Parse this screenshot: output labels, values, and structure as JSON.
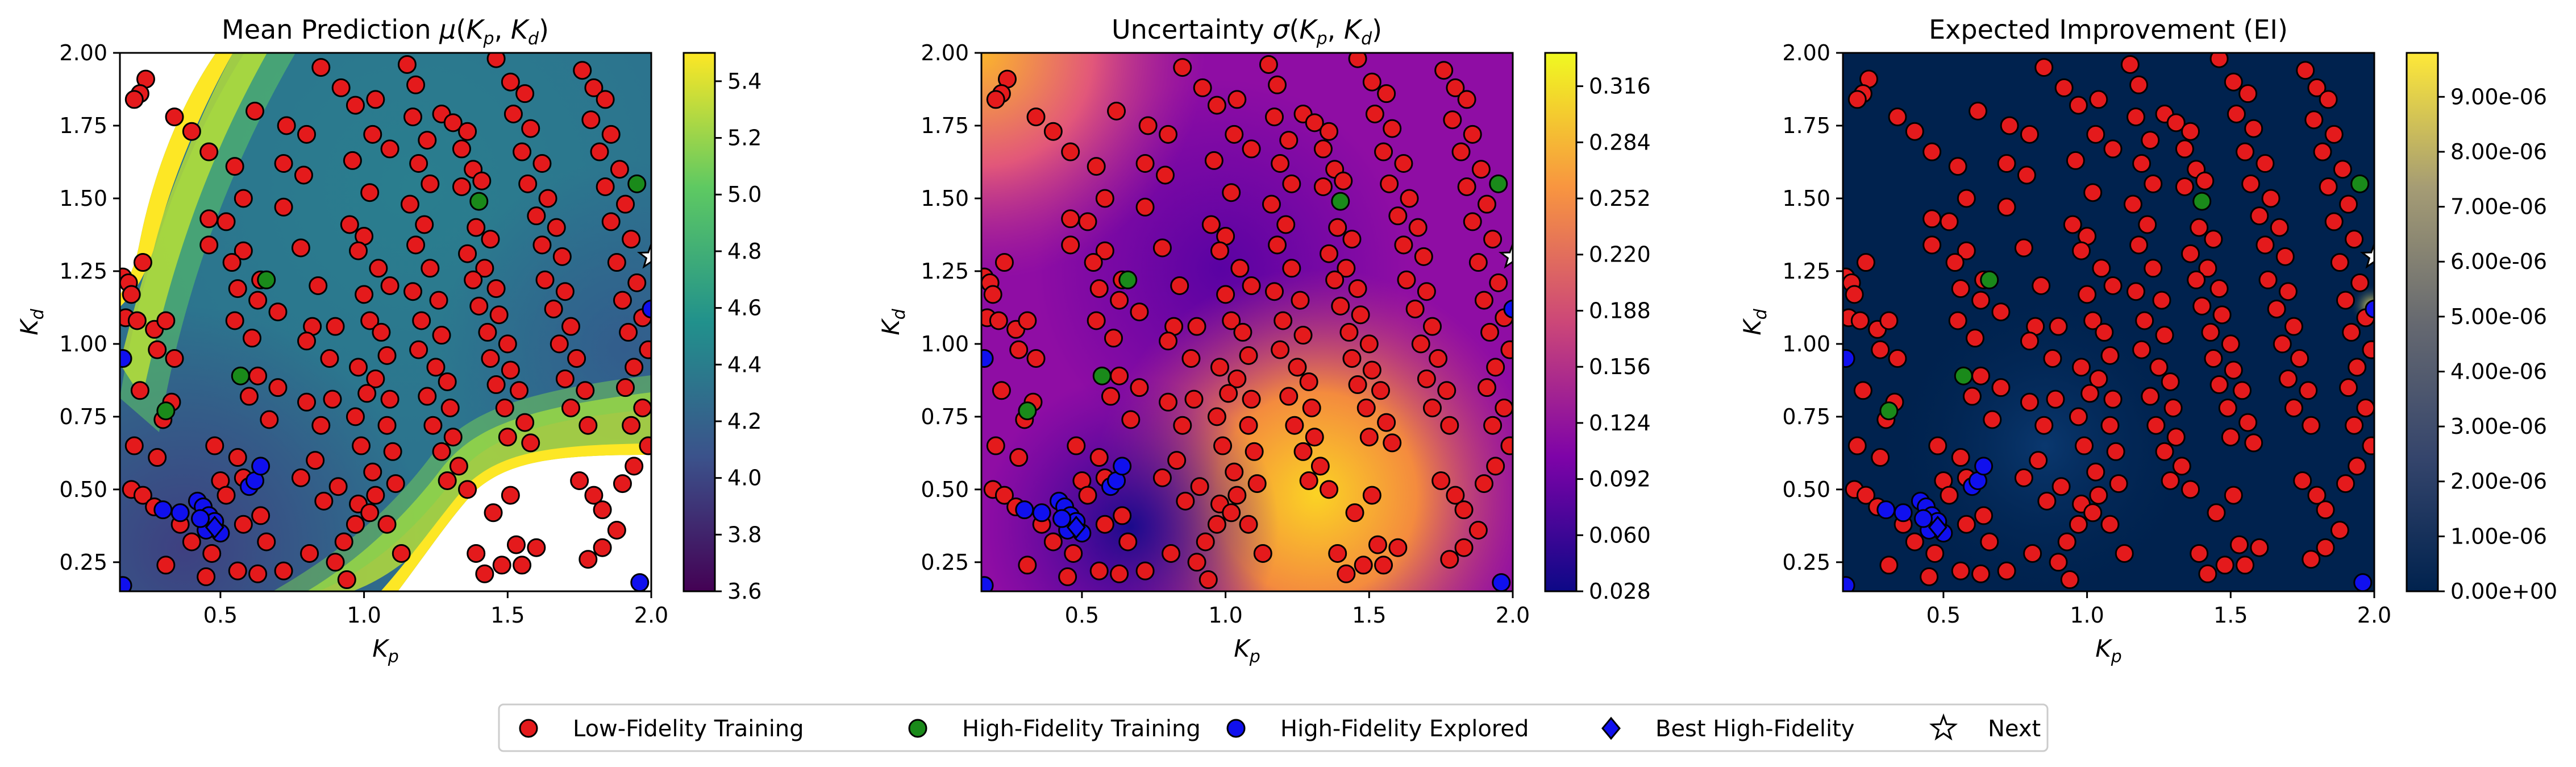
{
  "chart_data": [
    {
      "type": "heatmap",
      "title": "Mean Prediction μ(Kₚ, K_d)",
      "xlabel": "K_p",
      "ylabel": "K_d",
      "xlim": [
        0.15,
        2.0
      ],
      "ylim": [
        0.15,
        2.0
      ],
      "xticks": [
        "0.5",
        "1.0",
        "1.5",
        "2.0"
      ],
      "yticks": [
        "0.25",
        "0.50",
        "0.75",
        "1.00",
        "1.25",
        "1.50",
        "1.75",
        "2.00"
      ],
      "colormap": "viridis",
      "colorbar_range": [
        3.6,
        5.5
      ],
      "colorbar_ticks": [
        "3.6",
        "3.8",
        "4.0",
        "4.2",
        "4.4",
        "4.6",
        "4.8",
        "5.0",
        "5.2",
        "5.4"
      ]
    },
    {
      "type": "heatmap",
      "title": "Uncertainty σ(Kₚ, K_d)",
      "xlabel": "K_p",
      "ylabel": "K_d",
      "xlim": [
        0.15,
        2.0
      ],
      "ylim": [
        0.15,
        2.0
      ],
      "xticks": [
        "0.5",
        "1.0",
        "1.5",
        "2.0"
      ],
      "yticks": [
        "0.25",
        "0.50",
        "0.75",
        "1.00",
        "1.25",
        "1.50",
        "1.75",
        "2.00"
      ],
      "colormap": "plasma",
      "colorbar_range": [
        0.028,
        0.335
      ],
      "colorbar_ticks": [
        "0.028",
        "0.060",
        "0.092",
        "0.124",
        "0.156",
        "0.188",
        "0.220",
        "0.252",
        "0.284",
        "0.316"
      ]
    },
    {
      "type": "heatmap",
      "title": "Expected Improvement (EI)",
      "xlabel": "K_p",
      "ylabel": "K_d",
      "xlim": [
        0.15,
        2.0
      ],
      "ylim": [
        0.15,
        2.0
      ],
      "xticks": [
        "0.5",
        "1.0",
        "1.5",
        "2.0"
      ],
      "yticks": [
        "0.25",
        "0.50",
        "0.75",
        "1.00",
        "1.25",
        "1.50",
        "1.75",
        "2.00"
      ],
      "colormap": "cividis",
      "colorbar_range": [
        0,
        9.8e-06
      ],
      "colorbar_ticks": [
        "0.00e+00",
        "1.00e-06",
        "2.00e-06",
        "3.00e-06",
        "4.00e-06",
        "5.00e-06",
        "6.00e-06",
        "7.00e-06",
        "8.00e-06",
        "9.00e-06"
      ]
    }
  ],
  "legend": {
    "placement": "bottom-center",
    "entries": [
      {
        "label": "Low-Fidelity Training",
        "marker": "circle",
        "color": "#e41a1c"
      },
      {
        "label": "High-Fidelity Training",
        "marker": "circle",
        "color": "#1a8a1a"
      },
      {
        "label": "High-Fidelity Explored",
        "marker": "circle",
        "color": "#1010ee"
      },
      {
        "label": "Best High-Fidelity",
        "marker": "diamond",
        "color": "#1010ee"
      },
      {
        "label": "Next",
        "marker": "star",
        "color": "#ffffff"
      }
    ]
  },
  "points": {
    "low_fidelity": [
      [
        0.24,
        1.91
      ],
      [
        0.22,
        1.86
      ],
      [
        0.2,
        1.84
      ],
      [
        0.34,
        1.78
      ],
      [
        0.4,
        1.73
      ],
      [
        0.23,
        1.28
      ],
      [
        0.16,
        1.23
      ],
      [
        0.18,
        1.21
      ],
      [
        0.19,
        1.17
      ],
      [
        0.17,
        1.09
      ],
      [
        0.21,
        1.08
      ],
      [
        0.27,
        1.05
      ],
      [
        0.31,
        1.08
      ],
      [
        0.28,
        0.98
      ],
      [
        0.34,
        0.95
      ],
      [
        0.22,
        0.84
      ],
      [
        0.33,
        0.8
      ],
      [
        0.3,
        0.74
      ],
      [
        0.2,
        0.65
      ],
      [
        0.28,
        0.61
      ],
      [
        0.19,
        0.5
      ],
      [
        0.23,
        0.48
      ],
      [
        0.27,
        0.44
      ],
      [
        0.36,
        0.38
      ],
      [
        0.4,
        0.32
      ],
      [
        0.47,
        0.28
      ],
      [
        0.31,
        0.24
      ],
      [
        0.45,
        0.2
      ],
      [
        0.46,
        1.66
      ],
      [
        0.55,
        1.61
      ],
      [
        0.58,
        1.5
      ],
      [
        0.46,
        1.43
      ],
      [
        0.52,
        1.42
      ],
      [
        0.58,
        1.32
      ],
      [
        0.46,
        1.34
      ],
      [
        0.54,
        1.28
      ],
      [
        0.64,
        1.22
      ],
      [
        0.56,
        1.19
      ],
      [
        0.63,
        1.15
      ],
      [
        0.55,
        1.08
      ],
      [
        0.7,
        1.11
      ],
      [
        0.61,
        1.02
      ],
      [
        0.63,
        0.89
      ],
      [
        0.6,
        0.82
      ],
      [
        0.7,
        0.85
      ],
      [
        0.67,
        0.74
      ],
      [
        0.48,
        0.65
      ],
      [
        0.56,
        0.61
      ],
      [
        0.58,
        0.54
      ],
      [
        0.5,
        0.53
      ],
      [
        0.52,
        0.48
      ],
      [
        0.64,
        0.41
      ],
      [
        0.58,
        0.38
      ],
      [
        0.66,
        0.32
      ],
      [
        0.56,
        0.22
      ],
      [
        0.63,
        0.21
      ],
      [
        0.72,
        0.22
      ],
      [
        0.62,
        1.8
      ],
      [
        0.73,
        1.75
      ],
      [
        0.8,
        1.72
      ],
      [
        0.72,
        1.62
      ],
      [
        0.79,
        1.58
      ],
      [
        0.72,
        1.47
      ],
      [
        0.78,
        1.33
      ],
      [
        0.84,
        1.2
      ],
      [
        0.82,
        1.06
      ],
      [
        0.8,
        1.01
      ],
      [
        0.9,
        1.06
      ],
      [
        0.88,
        0.95
      ],
      [
        0.8,
        0.8
      ],
      [
        0.89,
        0.81
      ],
      [
        0.85,
        0.72
      ],
      [
        0.83,
        0.6
      ],
      [
        0.78,
        0.54
      ],
      [
        0.91,
        0.51
      ],
      [
        0.86,
        0.46
      ],
      [
        0.98,
        0.45
      ],
      [
        0.97,
        0.38
      ],
      [
        0.93,
        0.32
      ],
      [
        0.81,
        0.28
      ],
      [
        0.9,
        0.25
      ],
      [
        0.94,
        0.19
      ],
      [
        0.85,
        1.95
      ],
      [
        0.92,
        1.88
      ],
      [
        0.97,
        1.82
      ],
      [
        1.04,
        1.84
      ],
      [
        1.03,
        1.72
      ],
      [
        1.09,
        1.67
      ],
      [
        0.96,
        1.63
      ],
      [
        1.02,
        1.52
      ],
      [
        0.95,
        1.41
      ],
      [
        1.0,
        1.37
      ],
      [
        0.98,
        1.32
      ],
      [
        1.05,
        1.26
      ],
      [
        1.0,
        1.17
      ],
      [
        1.09,
        1.2
      ],
      [
        1.02,
        1.08
      ],
      [
        1.06,
        1.04
      ],
      [
        1.08,
        0.96
      ],
      [
        0.98,
        0.92
      ],
      [
        1.04,
        0.88
      ],
      [
        1.01,
        0.83
      ],
      [
        1.09,
        0.81
      ],
      [
        0.97,
        0.75
      ],
      [
        1.08,
        0.72
      ],
      [
        0.99,
        0.65
      ],
      [
        1.1,
        0.63
      ],
      [
        1.03,
        0.56
      ],
      [
        1.11,
        0.52
      ],
      [
        1.04,
        0.48
      ],
      [
        1.02,
        0.42
      ],
      [
        1.08,
        0.38
      ],
      [
        1.13,
        0.28
      ],
      [
        1.15,
        1.96
      ],
      [
        1.18,
        1.89
      ],
      [
        1.17,
        1.78
      ],
      [
        1.22,
        1.7
      ],
      [
        1.19,
        1.62
      ],
      [
        1.23,
        1.55
      ],
      [
        1.16,
        1.48
      ],
      [
        1.21,
        1.41
      ],
      [
        1.18,
        1.34
      ],
      [
        1.23,
        1.26
      ],
      [
        1.17,
        1.18
      ],
      [
        1.26,
        1.15
      ],
      [
        1.2,
        1.08
      ],
      [
        1.27,
        1.03
      ],
      [
        1.19,
        0.98
      ],
      [
        1.25,
        0.92
      ],
      [
        1.29,
        0.87
      ],
      [
        1.22,
        0.82
      ],
      [
        1.3,
        0.78
      ],
      [
        1.24,
        0.72
      ],
      [
        1.31,
        0.68
      ],
      [
        1.27,
        0.63
      ],
      [
        1.33,
        0.58
      ],
      [
        1.29,
        0.53
      ],
      [
        1.36,
        0.5
      ],
      [
        1.27,
        1.79
      ],
      [
        1.31,
        1.76
      ],
      [
        1.36,
        1.73
      ],
      [
        1.34,
        1.67
      ],
      [
        1.38,
        1.6
      ],
      [
        1.34,
        1.54
      ],
      [
        1.41,
        1.56
      ],
      [
        1.39,
        1.4
      ],
      [
        1.44,
        1.36
      ],
      [
        1.36,
        1.31
      ],
      [
        1.42,
        1.26
      ],
      [
        1.38,
        1.22
      ],
      [
        1.46,
        1.19
      ],
      [
        1.4,
        1.13
      ],
      [
        1.47,
        1.1
      ],
      [
        1.43,
        1.04
      ],
      [
        1.5,
        1.0
      ],
      [
        1.44,
        0.95
      ],
      [
        1.51,
        0.91
      ],
      [
        1.46,
        0.86
      ],
      [
        1.54,
        0.84
      ],
      [
        1.49,
        0.78
      ],
      [
        1.56,
        0.73
      ],
      [
        1.5,
        0.68
      ],
      [
        1.58,
        0.66
      ],
      [
        1.51,
        0.48
      ],
      [
        1.45,
        0.42
      ],
      [
        1.53,
        0.31
      ],
      [
        1.48,
        0.24
      ],
      [
        1.39,
        0.28
      ],
      [
        1.42,
        0.21
      ],
      [
        1.55,
        0.24
      ],
      [
        1.6,
        0.3
      ],
      [
        1.46,
        1.98
      ],
      [
        1.51,
        1.9
      ],
      [
        1.56,
        1.86
      ],
      [
        1.52,
        1.79
      ],
      [
        1.58,
        1.74
      ],
      [
        1.55,
        1.66
      ],
      [
        1.62,
        1.62
      ],
      [
        1.57,
        1.55
      ],
      [
        1.64,
        1.5
      ],
      [
        1.6,
        1.44
      ],
      [
        1.67,
        1.4
      ],
      [
        1.62,
        1.34
      ],
      [
        1.69,
        1.3
      ],
      [
        1.63,
        1.22
      ],
      [
        1.7,
        1.18
      ],
      [
        1.66,
        1.12
      ],
      [
        1.72,
        1.06
      ],
      [
        1.68,
        1.0
      ],
      [
        1.74,
        0.95
      ],
      [
        1.7,
        0.88
      ],
      [
        1.77,
        0.84
      ],
      [
        1.72,
        0.78
      ],
      [
        1.78,
        0.72
      ],
      [
        1.75,
        0.53
      ],
      [
        1.8,
        0.48
      ],
      [
        1.83,
        0.43
      ],
      [
        1.88,
        0.36
      ],
      [
        1.83,
        0.3
      ],
      [
        1.78,
        0.26
      ],
      [
        1.76,
        1.94
      ],
      [
        1.8,
        1.88
      ],
      [
        1.84,
        1.84
      ],
      [
        1.79,
        1.77
      ],
      [
        1.86,
        1.72
      ],
      [
        1.82,
        1.66
      ],
      [
        1.89,
        1.6
      ],
      [
        1.84,
        1.54
      ],
      [
        1.91,
        1.48
      ],
      [
        1.86,
        1.42
      ],
      [
        1.93,
        1.36
      ],
      [
        1.88,
        1.28
      ],
      [
        1.95,
        1.21
      ],
      [
        1.9,
        1.15
      ],
      [
        1.97,
        1.09
      ],
      [
        1.92,
        1.04
      ],
      [
        1.99,
        0.98
      ],
      [
        1.94,
        0.92
      ],
      [
        1.91,
        0.85
      ],
      [
        1.97,
        0.78
      ],
      [
        1.93,
        0.72
      ],
      [
        1.99,
        0.65
      ],
      [
        1.94,
        0.58
      ],
      [
        1.9,
        0.52
      ]
    ],
    "high_fidelity_training": [
      [
        0.66,
        1.22
      ],
      [
        1.4,
        1.49
      ],
      [
        0.57,
        0.89
      ],
      [
        0.31,
        0.77
      ],
      [
        1.95,
        1.55
      ]
    ],
    "high_fidelity_explored": [
      [
        0.42,
        0.46
      ],
      [
        0.44,
        0.44
      ],
      [
        0.46,
        0.41
      ],
      [
        0.48,
        0.39
      ],
      [
        0.45,
        0.36
      ],
      [
        0.5,
        0.35
      ],
      [
        0.43,
        0.4
      ],
      [
        0.3,
        0.43
      ],
      [
        0.6,
        0.51
      ],
      [
        0.62,
        0.53
      ],
      [
        0.64,
        0.58
      ],
      [
        0.16,
        0.95
      ],
      [
        2.0,
        1.12
      ],
      [
        1.96,
        0.18
      ],
      [
        0.16,
        0.17
      ],
      [
        0.36,
        0.42
      ]
    ],
    "best_high_fidelity": [
      0.48,
      0.37
    ],
    "next": [
      2.0,
      1.3
    ]
  }
}
